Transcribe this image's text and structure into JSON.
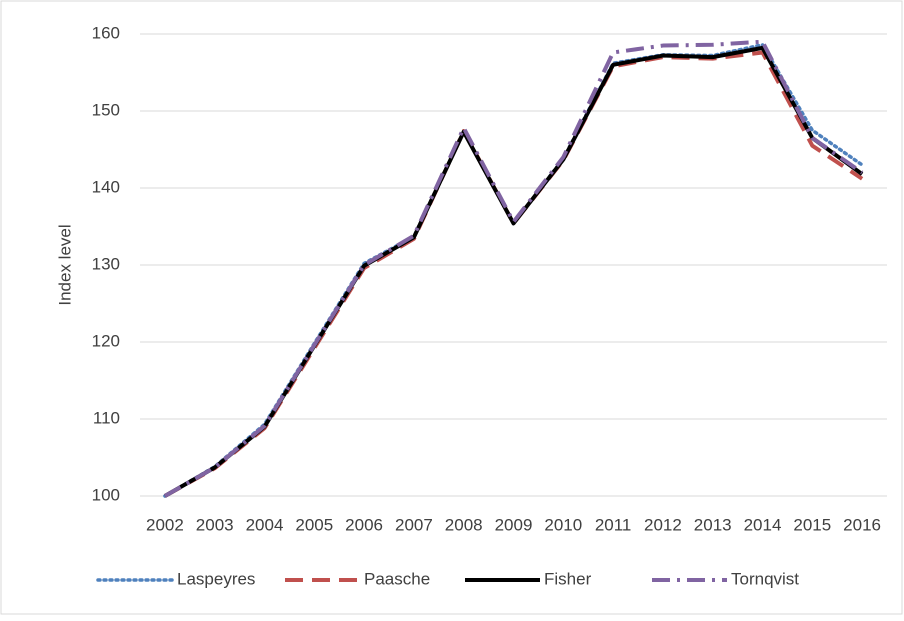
{
  "chart_data": {
    "type": "line",
    "y_label": "Index level",
    "x": [
      "2002",
      "2003",
      "2004",
      "2005",
      "2006",
      "2007",
      "2008",
      "2009",
      "2010",
      "2011",
      "2012",
      "2013",
      "2014",
      "2015",
      "2016"
    ],
    "ylim": [
      100,
      160
    ],
    "yticks": [
      100,
      110,
      120,
      130,
      140,
      150,
      160
    ],
    "grid": true,
    "legend": "bottom",
    "series": [
      {
        "name": "Laspeyres",
        "color": "#4f81bd",
        "dash": "dotted",
        "values": [
          100,
          103.8,
          109.3,
          119.8,
          130.2,
          133.7,
          147.3,
          135.4,
          143.8,
          156.2,
          157.3,
          157.2,
          158.6,
          147.5,
          143
        ]
      },
      {
        "name": "Paasche",
        "color": "#c0504d",
        "dash": "dashed",
        "values": [
          100,
          103.6,
          108.8,
          119.2,
          129.6,
          133.4,
          147.4,
          135.4,
          143.6,
          155.8,
          157,
          156.8,
          157.6,
          145.5,
          141.2
        ]
      },
      {
        "name": "Fisher",
        "color": "#000000",
        "dash": "solid",
        "values": [
          100,
          103.7,
          109,
          119.5,
          129.9,
          133.6,
          147.3,
          135.4,
          143.7,
          156,
          157.2,
          157,
          158.2,
          146.5,
          141.8
        ]
      },
      {
        "name": "Tornqvist",
        "color": "#8064a2",
        "dash": "dashdot",
        "values": [
          100,
          103.7,
          109.1,
          119.6,
          130,
          133.8,
          147.8,
          135.6,
          144,
          157.6,
          158.5,
          158.6,
          159,
          146.5,
          142
        ]
      }
    ]
  }
}
